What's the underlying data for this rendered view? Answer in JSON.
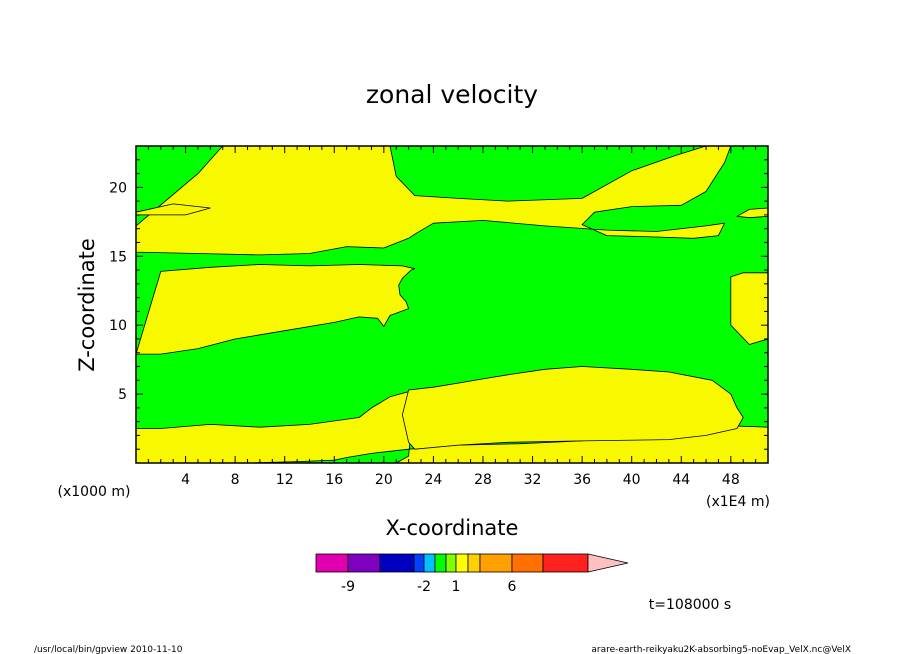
{
  "chart_data": {
    "type": "contour",
    "title": "zonal velocity",
    "xlabel": "X-coordinate",
    "ylabel": "Z-coordinate",
    "x_unit_label": "(x1E4 m)",
    "y_unit_label": "(x1000 m)",
    "xlim": [
      0,
      51
    ],
    "ylim": [
      0,
      23
    ],
    "x_ticks": [
      4,
      8,
      12,
      16,
      20,
      24,
      28,
      32,
      36,
      40,
      44,
      48
    ],
    "y_ticks": [
      5,
      10,
      15,
      20
    ],
    "regions": [
      {
        "fill": "yellow",
        "x": [
          0,
          0,
          2,
          6,
          10,
          14,
          18,
          19,
          20.5,
          22.5,
          22,
          21,
          51,
          51,
          48,
          44,
          40,
          36,
          31,
          26,
          22,
          19,
          17,
          16,
          13,
          9,
          5,
          2
        ],
        "y": [
          0,
          2.5,
          2.5,
          2.8,
          2.6,
          2.8,
          3.3,
          4.0,
          4.8,
          5.3,
          0.5,
          0,
          0,
          2.6,
          2.7,
          3.0,
          2.6,
          1.6,
          1.4,
          1.3,
          1.0,
          0.7,
          0.4,
          0.2,
          0.1,
          0,
          0,
          0
        ]
      },
      {
        "fill": "yellow",
        "x": [
          22.5,
          26,
          30,
          36,
          43,
          46,
          48.5,
          49,
          48.5,
          48,
          46.5,
          43,
          40,
          36,
          33,
          30,
          28,
          26,
          24,
          22,
          21.5,
          22
        ],
        "y": [
          1.0,
          1.3,
          1.5,
          1.6,
          1.7,
          2.0,
          2.5,
          3.3,
          4.0,
          5.0,
          6.0,
          6.6,
          6.8,
          7.0,
          6.8,
          6.4,
          6.1,
          5.8,
          5.5,
          5.3,
          3.5,
          1.5
        ]
      },
      {
        "fill": "yellow",
        "x": [
          0,
          2,
          5,
          8,
          12,
          16,
          18,
          19.5,
          20,
          20.5,
          22,
          21.8,
          21.3,
          21.2,
          21.5,
          22.2,
          22.5,
          21.5,
          18,
          14,
          10,
          6,
          2
        ],
        "y": [
          7.9,
          7.9,
          8.3,
          9.0,
          9.6,
          10.2,
          10.6,
          10.5,
          9.9,
          10.7,
          11.2,
          11.7,
          12.2,
          12.9,
          13.4,
          14.0,
          14.1,
          14.3,
          14.4,
          14.3,
          14.4,
          14.2,
          13.9
        ]
      },
      {
        "fill": "yellow",
        "x": [
          48,
          49,
          51,
          51,
          49.5,
          48
        ],
        "y": [
          13.5,
          13.8,
          13.8,
          9.0,
          8.6,
          10.0
        ]
      },
      {
        "fill": "yellow",
        "x": [
          0,
          0,
          5,
          10,
          14,
          17,
          20,
          22,
          22.5,
          24,
          28,
          33,
          38,
          42,
          46,
          47.5,
          47,
          45,
          42,
          38,
          36,
          37,
          40,
          44,
          46,
          47.5,
          48,
          46,
          43.5,
          40,
          36,
          30,
          26,
          22.5,
          21,
          20.5,
          18,
          14,
          10,
          7,
          5
        ],
        "y": [
          17.2,
          15.3,
          15.2,
          15.1,
          15.2,
          15.7,
          15.6,
          16.3,
          16.6,
          17.4,
          17.6,
          17.2,
          16.9,
          16.8,
          17.2,
          17.4,
          16.5,
          16.3,
          16.4,
          16.5,
          17.3,
          18.2,
          18.6,
          18.7,
          19.7,
          21.8,
          23,
          23,
          22.3,
          21.2,
          19.2,
          19.0,
          19.2,
          19.4,
          20.8,
          23,
          23,
          23,
          23,
          23,
          21.0
        ]
      },
      {
        "fill": "yellow",
        "x": [
          0,
          3,
          6,
          4,
          0
        ],
        "y": [
          18.2,
          18.8,
          18.5,
          18.0,
          18.0
        ]
      },
      {
        "fill": "yellow",
        "x": [
          48.5,
          49.5,
          51,
          51,
          49.5
        ],
        "y": [
          17.9,
          18.4,
          18.5,
          17.9,
          17.8
        ]
      }
    ],
    "colorbar": {
      "colors": [
        "#e000b0",
        "#8000c0",
        "#0000c0",
        "#0040ff",
        "#00c0ff",
        "#00ff00",
        "#80ff00",
        "#ffff00",
        "#ffd000",
        "#ffa000",
        "#ff7000",
        "#ff2020",
        "#ff8080",
        "#ffc0c0"
      ],
      "labels": [
        "-9",
        "-2",
        "1",
        "6"
      ]
    },
    "time_label": "t=108000 s",
    "footer_left": "/usr/local/bin/gpview   2010-11-10",
    "footer_right": "arare-earth-reikyaku2K-absorbing5-noEvap_VelX.nc@VelX"
  }
}
